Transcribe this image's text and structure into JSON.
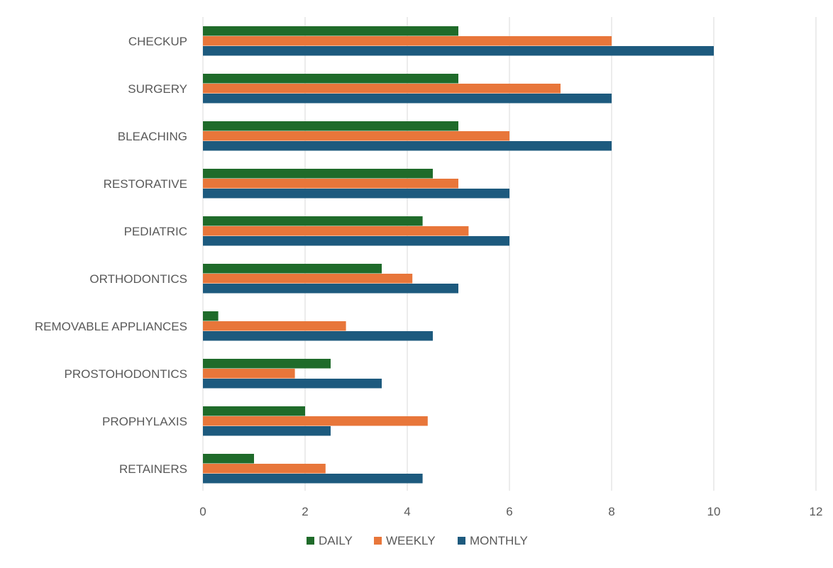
{
  "chart_data": {
    "type": "bar",
    "orientation": "horizontal",
    "title": "",
    "xlabel": "",
    "ylabel": "",
    "categories": [
      "CHECKUP",
      "SURGERY",
      "BLEACHING",
      "RESTORATIVE",
      "PEDIATRIC",
      "ORTHODONTICS",
      "REMOVABLE APPLIANCES",
      "PROSTOHODONTICS",
      "PROPHYLAXIS",
      "RETAINERS"
    ],
    "series": [
      {
        "name": "DAILY",
        "color": "#1f6b2a",
        "values": [
          5,
          5,
          5,
          4.5,
          4.3,
          3.5,
          0.3,
          2.5,
          2,
          1
        ]
      },
      {
        "name": "WEEKLY",
        "color": "#e8763a",
        "values": [
          8,
          7,
          6,
          5,
          5.2,
          4.1,
          2.8,
          1.8,
          4.4,
          2.4
        ]
      },
      {
        "name": "MONTHLY",
        "color": "#1d5a7e",
        "values": [
          10,
          8,
          8,
          6,
          6,
          5,
          4.5,
          3.5,
          2.5,
          4.3
        ]
      }
    ],
    "xlim": [
      0,
      12
    ],
    "xticks": [
      "0",
      "2",
      "4",
      "6",
      "8",
      "10",
      "12"
    ],
    "grid": "vertical",
    "legend": "bottom"
  }
}
